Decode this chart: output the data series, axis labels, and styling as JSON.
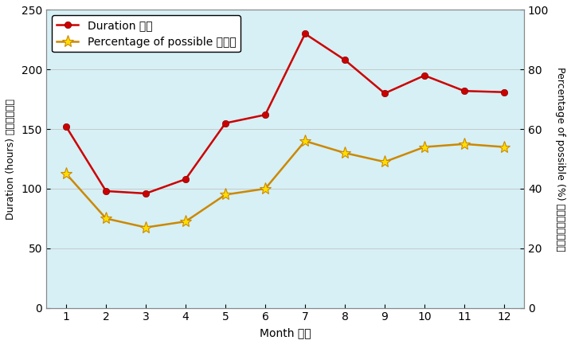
{
  "months": [
    1,
    2,
    3,
    4,
    5,
    6,
    7,
    8,
    9,
    10,
    11,
    12
  ],
  "duration": [
    152,
    98,
    96,
    108,
    155,
    162,
    230,
    208,
    180,
    195,
    182,
    181
  ],
  "percentage": [
    45,
    30,
    27,
    29,
    38,
    40,
    56,
    52,
    49,
    54,
    55,
    54
  ],
  "duration_color": "#cc0000",
  "percentage_color": "#cc8800",
  "bg_color": "#d6f0f5",
  "outer_bg": "#ffffff",
  "xlabel": "Month 月份",
  "ylabel_left_en": "Duration (hours) ",
  "ylabel_left_zh": "時間（小時）",
  "ylabel_right_en": "Percentage of possible (%) ",
  "ylabel_right_zh": "日照百分比（％）",
  "legend_duration": "Duration 時間",
  "legend_percentage": "Percentage of possible 百分比",
  "ylim_left": [
    0,
    250
  ],
  "ylim_right": [
    0,
    100
  ],
  "yticks_left": [
    0,
    50,
    100,
    150,
    200,
    250
  ],
  "yticks_right": [
    0,
    20,
    40,
    60,
    80,
    100
  ],
  "grid_color": "#bbbbbb",
  "axis_border_color": "#888888"
}
